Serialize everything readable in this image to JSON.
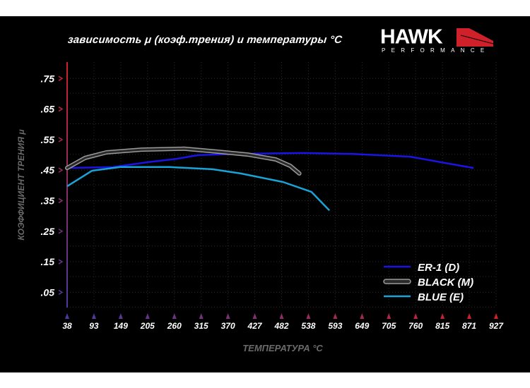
{
  "title": "зависимость μ (коэф.трения) и температуры °C",
  "logo": {
    "brand": "HAWK",
    "sub": "PERFORMANCE"
  },
  "colors": {
    "er1": "#1a14e6",
    "black": "#2a2a2a",
    "black_outline": "#9a9a9a",
    "blue": "#1aa3d6",
    "axis_start": "#4a3aa0",
    "axis_end": "#d0202a"
  },
  "chart_data": {
    "type": "line",
    "title": "зависимость μ (коэф.трения) и температуры °C",
    "xlabel": "ТЕМПЕРАТУРА °C",
    "ylabel": "КОЭФФИЦИЕНТ ТРЕНИЯ μ",
    "x_ticks": [
      38,
      93,
      149,
      205,
      260,
      315,
      370,
      427,
      482,
      538,
      593,
      649,
      705,
      760,
      815,
      871,
      927
    ],
    "y_ticks": [
      ".05",
      ".15",
      ".25",
      ".35",
      ".45",
      ".55",
      ".65",
      ".75"
    ],
    "y_tick_values": [
      0.05,
      0.15,
      0.25,
      0.35,
      0.45,
      0.55,
      0.65,
      0.75
    ],
    "xlim": [
      38,
      927
    ],
    "ylim": [
      0,
      0.8
    ],
    "grid": true,
    "legend_placement": "bottom-right",
    "series": [
      {
        "name": "ER-1 (D)",
        "key": "er1",
        "x": [
          38,
          133,
          206,
          265,
          309,
          382,
          529,
          631,
          749,
          836,
          880
        ],
        "y": [
          0.457,
          0.46,
          0.476,
          0.487,
          0.499,
          0.503,
          0.506,
          0.503,
          0.494,
          0.469,
          0.457
        ]
      },
      {
        "name": "BLACK (M)",
        "key": "black",
        "x": [
          38,
          75,
          119,
          192,
          280,
          353,
          412,
          470,
          500,
          519
        ],
        "y": [
          0.457,
          0.49,
          0.508,
          0.517,
          0.52,
          0.51,
          0.501,
          0.485,
          0.464,
          0.439
        ]
      },
      {
        "name": "BLUE (E)",
        "key": "blue",
        "x": [
          38,
          89,
          148,
          250,
          338,
          397,
          485,
          544,
          581
        ],
        "y": [
          0.397,
          0.448,
          0.46,
          0.46,
          0.453,
          0.439,
          0.411,
          0.379,
          0.318
        ]
      }
    ]
  }
}
